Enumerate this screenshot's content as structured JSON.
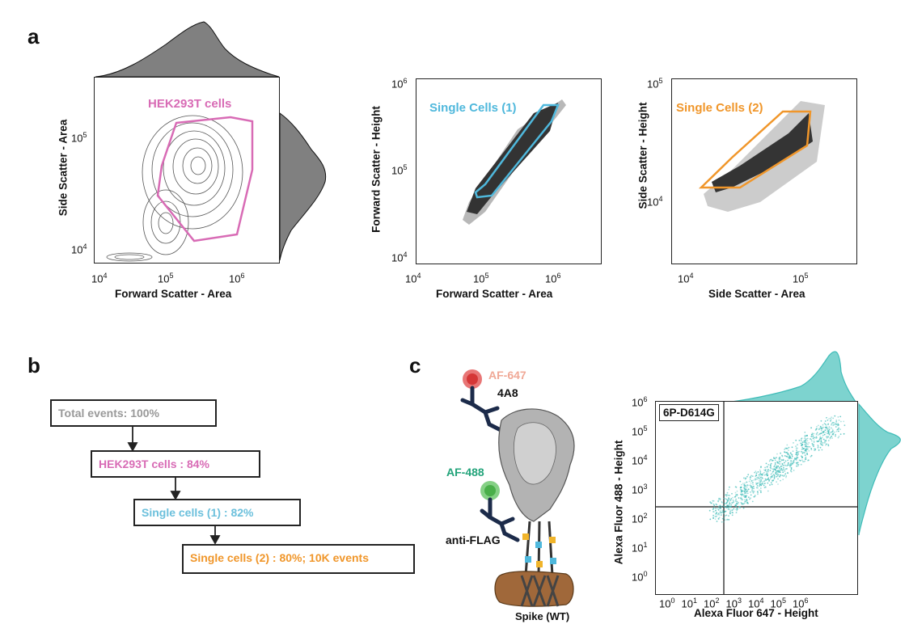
{
  "panels": {
    "a": "a",
    "b": "b",
    "c": "c"
  },
  "panel_a": {
    "plot1": {
      "gate_label": "HEK293T cells",
      "gate_color": "#d86bb5",
      "xlabel": "Forward Scatter - Area",
      "ylabel": "Side Scatter - Area",
      "xticks": [
        "10",
        "10",
        "10"
      ],
      "xexp": [
        "4",
        "5",
        "6"
      ],
      "yticks": [
        "10",
        "10"
      ],
      "yexp": [
        "5",
        "4"
      ]
    },
    "plot2": {
      "gate_label": "Single Cells (1)",
      "gate_color": "#4fb8dc",
      "xlabel": "Forward Scatter - Area",
      "ylabel": "Forward Scatter - Height",
      "xticks": [
        "10",
        "10",
        "10"
      ],
      "xexp": [
        "4",
        "5",
        "6"
      ],
      "yticks": [
        "10",
        "10",
        "10"
      ],
      "yexp": [
        "6",
        "5",
        "4"
      ]
    },
    "plot3": {
      "gate_label": "Single Cells (2)",
      "gate_color": "#f0962a",
      "xlabel": "Side Scatter - Area",
      "ylabel": "Side Scatter - Height",
      "xticks": [
        "10",
        "10"
      ],
      "xexp": [
        "4",
        "5"
      ],
      "yticks": [
        "10",
        "10"
      ],
      "yexp": [
        "5",
        "4"
      ]
    }
  },
  "panel_b": {
    "steps": [
      {
        "text": "Total events: 100%",
        "color": "#999999"
      },
      {
        "text": "HEK293T cells : 84%",
        "color": "#d86bb5"
      },
      {
        "text": "Single cells (1) : 82%",
        "color": "#6cc0dc"
      },
      {
        "text": "Single cells (2) : 80%; 10K events",
        "color": "#f0962a"
      }
    ]
  },
  "panel_c": {
    "schematic": {
      "af647": "AF-647",
      "af647_color": "#f0a896",
      "ab_4a8": "4A8",
      "af488": "AF-488",
      "af488_color": "#22a37a",
      "anti_flag": "anti-FLAG",
      "spike": "Spike (WT)"
    },
    "plot": {
      "sample_label": "6P-D614G",
      "xlabel": "Alexa Fluor 647 - Height",
      "ylabel": "Alexa Fluor 488 - Height",
      "xexp": [
        "0",
        "1",
        "2",
        "3",
        "4",
        "5",
        "6"
      ],
      "yexp": [
        "6",
        "5",
        "4",
        "3",
        "2",
        "1",
        "0"
      ],
      "tick_base": "10",
      "dot_color": "#3fbcb8"
    }
  }
}
